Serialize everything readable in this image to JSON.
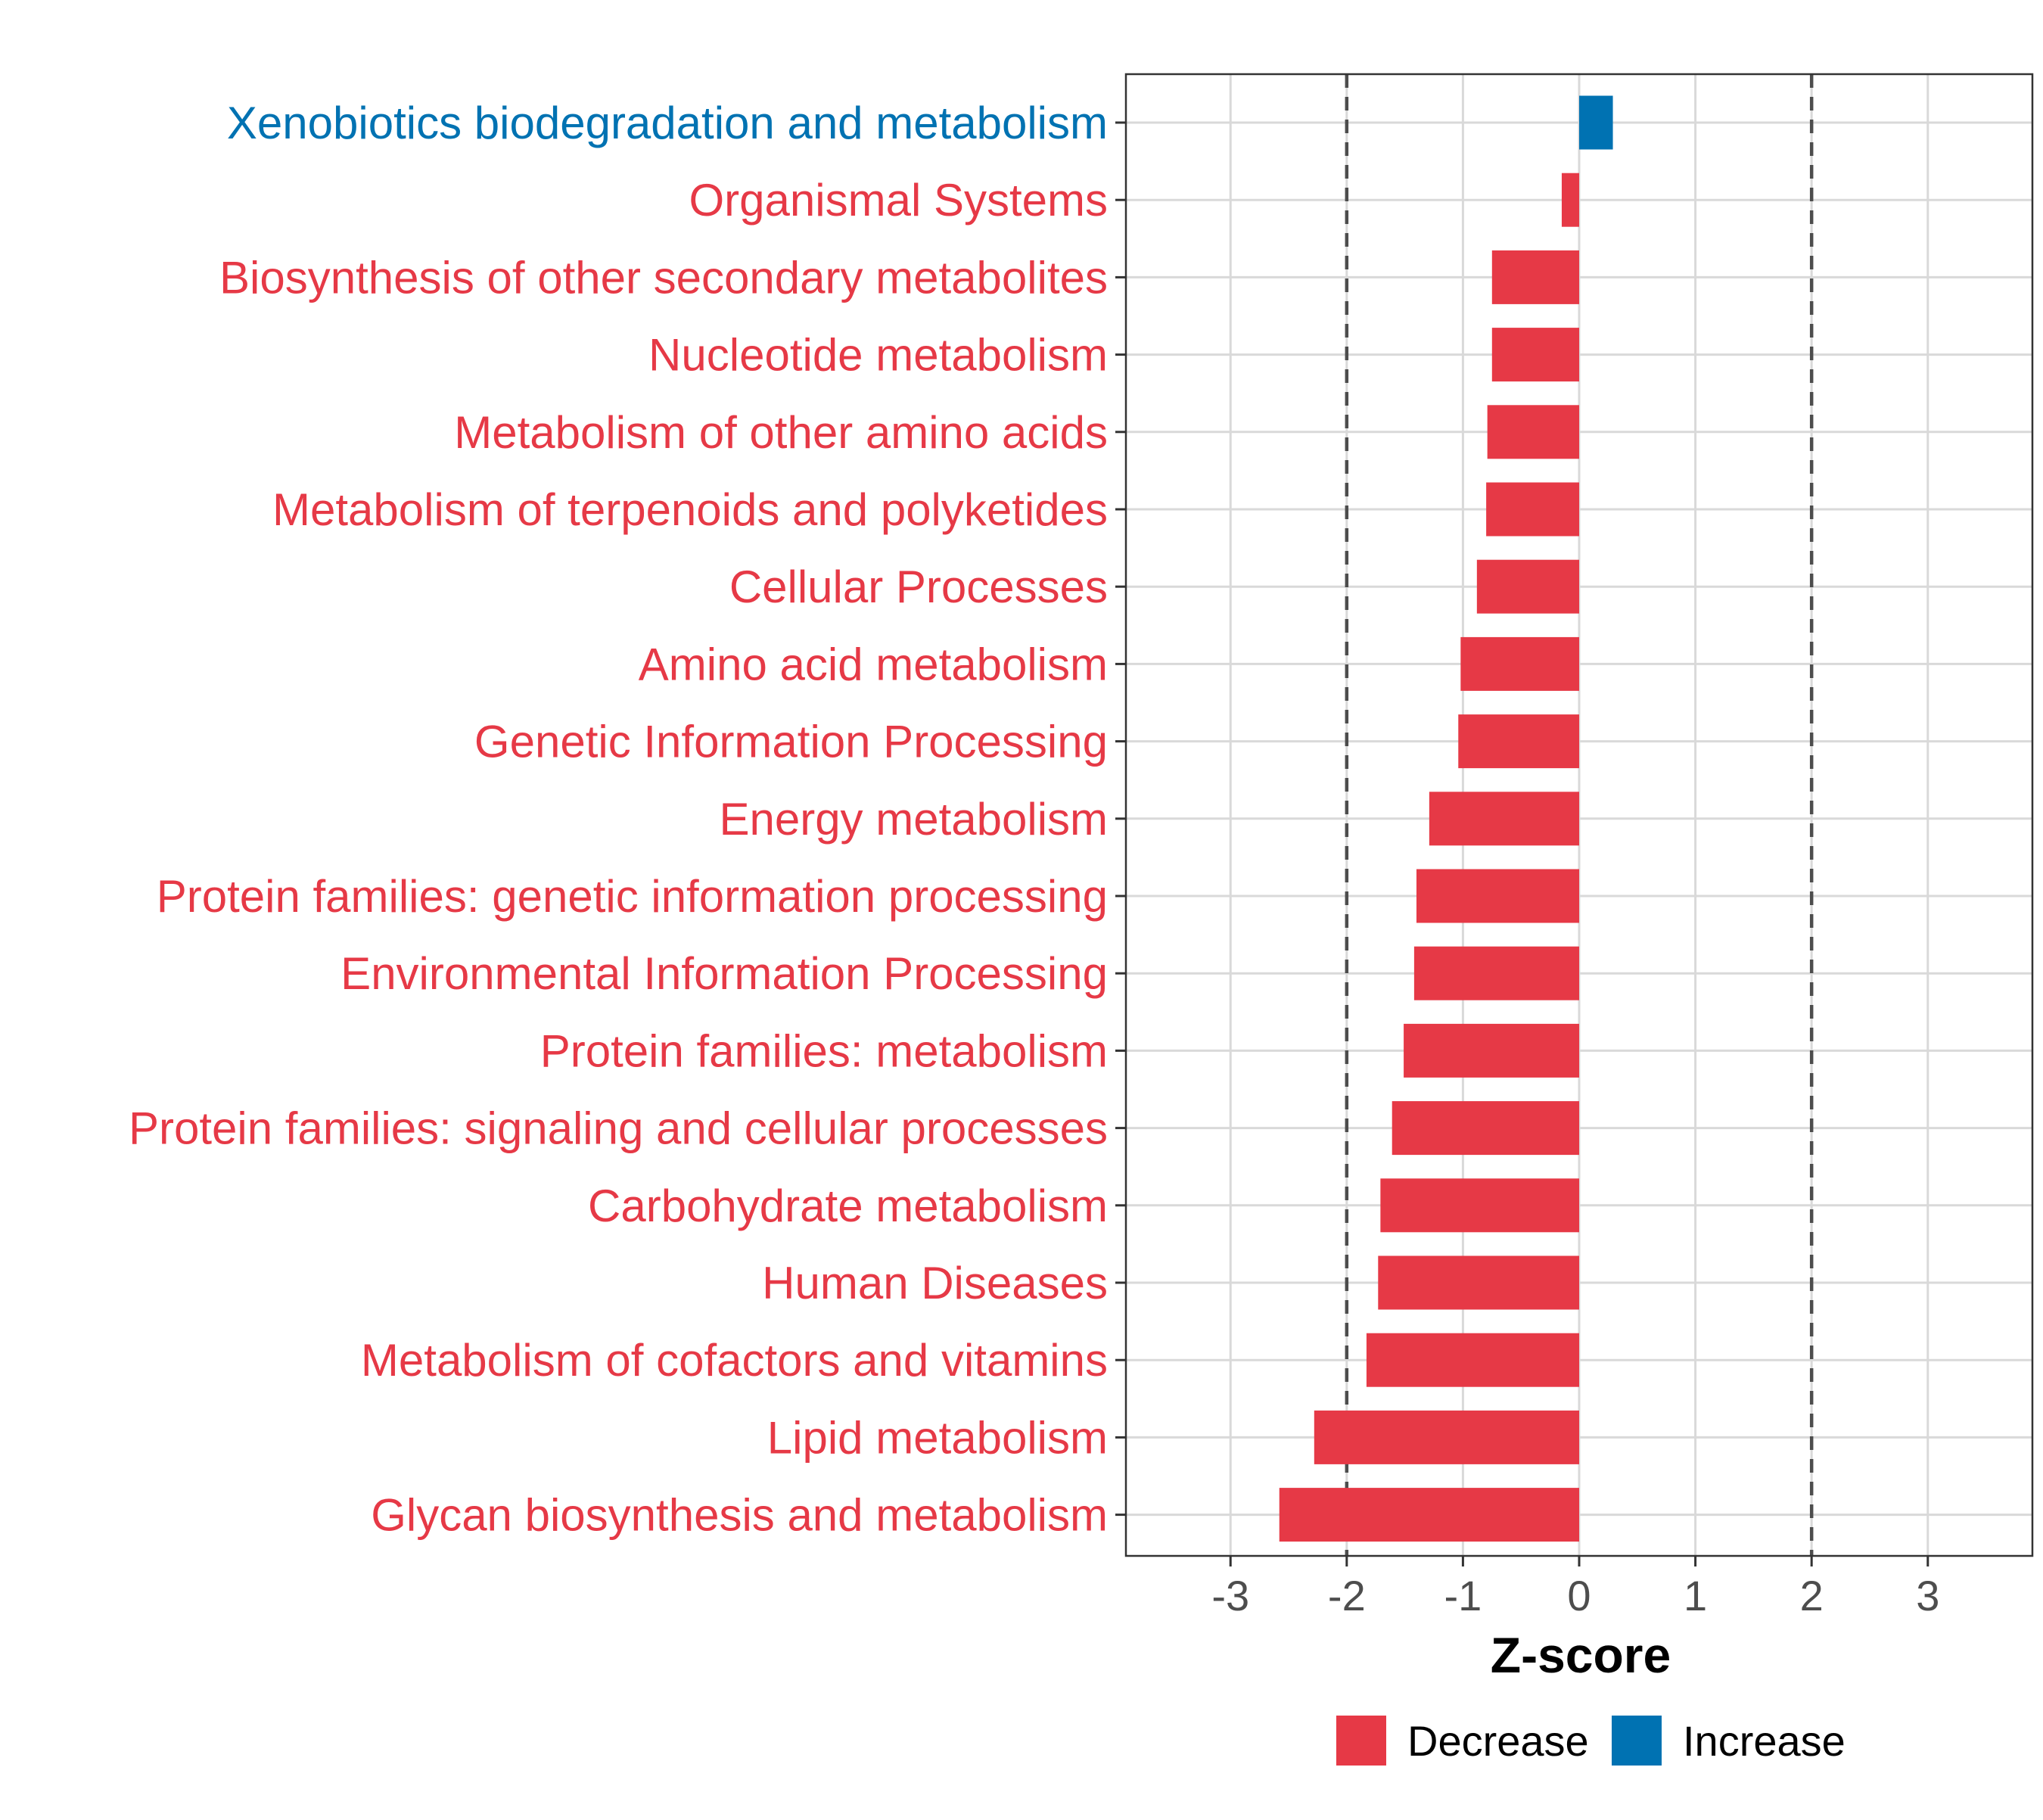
{
  "chart_data": {
    "type": "bar",
    "orientation": "horizontal",
    "title": "",
    "xlabel": "Z-score",
    "ylabel": "",
    "xlim": [
      -3.9,
      3.9
    ],
    "x_ticks": [
      -3,
      -2,
      -1,
      0,
      1,
      2,
      3
    ],
    "x_tick_labels": [
      "-3",
      "-2",
      "-1",
      "0",
      "1",
      "2",
      "3"
    ],
    "threshold_lines": [
      -2,
      2
    ],
    "grid": true,
    "legend_position": "bottom",
    "categories": [
      "Xenobiotics biodegradation and metabolism",
      "Organismal Systems",
      "Biosynthesis of other secondary metabolites",
      "Nucleotide metabolism",
      "Metabolism of other amino acids",
      "Metabolism of terpenoids and polyketides",
      "Cellular Processes",
      "Amino acid metabolism",
      "Genetic Information Processing",
      "Energy metabolism",
      "Protein families: genetic information processing",
      "Environmental Information Processing",
      "Protein families: metabolism",
      "Protein families: signaling and cellular processes",
      "Carbohydrate metabolism",
      "Human Diseases",
      "Metabolism of cofactors and vitamins",
      "Lipid metabolism",
      "Glycan biosynthesis and metabolism"
    ],
    "values": [
      0.29,
      -0.15,
      -0.75,
      -0.75,
      -0.79,
      -0.8,
      -0.88,
      -1.02,
      -1.04,
      -1.29,
      -1.4,
      -1.42,
      -1.51,
      -1.61,
      -1.71,
      -1.73,
      -1.83,
      -2.28,
      -2.58
    ],
    "groups": [
      "Increase",
      "Decrease",
      "Decrease",
      "Decrease",
      "Decrease",
      "Decrease",
      "Decrease",
      "Decrease",
      "Decrease",
      "Decrease",
      "Decrease",
      "Decrease",
      "Decrease",
      "Decrease",
      "Decrease",
      "Decrease",
      "Decrease",
      "Decrease",
      "Decrease"
    ],
    "legend": [
      {
        "name": "Decrease",
        "color": "#e63946"
      },
      {
        "name": "Increase",
        "color": "#0072b2"
      }
    ]
  },
  "colors": {
    "decrease": "#e63946",
    "increase": "#0072b2",
    "grid": "#d9d9d9",
    "threshold": "#4d4d4d",
    "axis": "#333333"
  }
}
